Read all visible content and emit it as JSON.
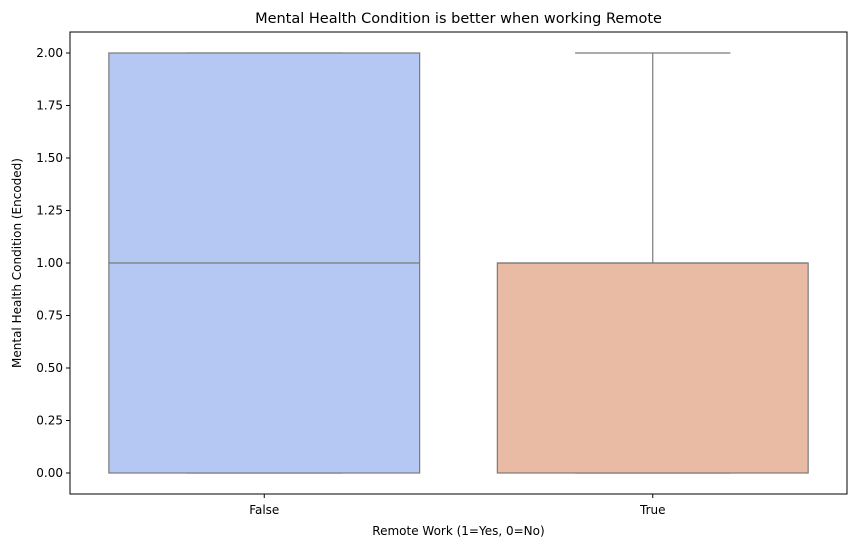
{
  "chart_data": {
    "type": "box",
    "title": "Mental Health Condition is better when working Remote",
    "xlabel": "Remote Work (1=Yes, 0=No)",
    "ylabel": "Mental Health Condition (Encoded)",
    "categories": [
      "False",
      "True"
    ],
    "ylim": [
      -0.1,
      2.1
    ],
    "yticks": [
      "0.00",
      "0.25",
      "0.50",
      "0.75",
      "1.00",
      "1.25",
      "1.50",
      "1.75",
      "2.00"
    ],
    "boxes": [
      {
        "category": "False",
        "min": 0,
        "q1": 0,
        "median": 1,
        "q3": 2,
        "max": 2,
        "color": "#b5c8f3"
      },
      {
        "category": "True",
        "min": 0,
        "q1": 0,
        "median": 1,
        "q3": 1,
        "max": 2,
        "color": "#eabba4"
      }
    ],
    "line_color": "#7a7a7a",
    "grid": false
  }
}
